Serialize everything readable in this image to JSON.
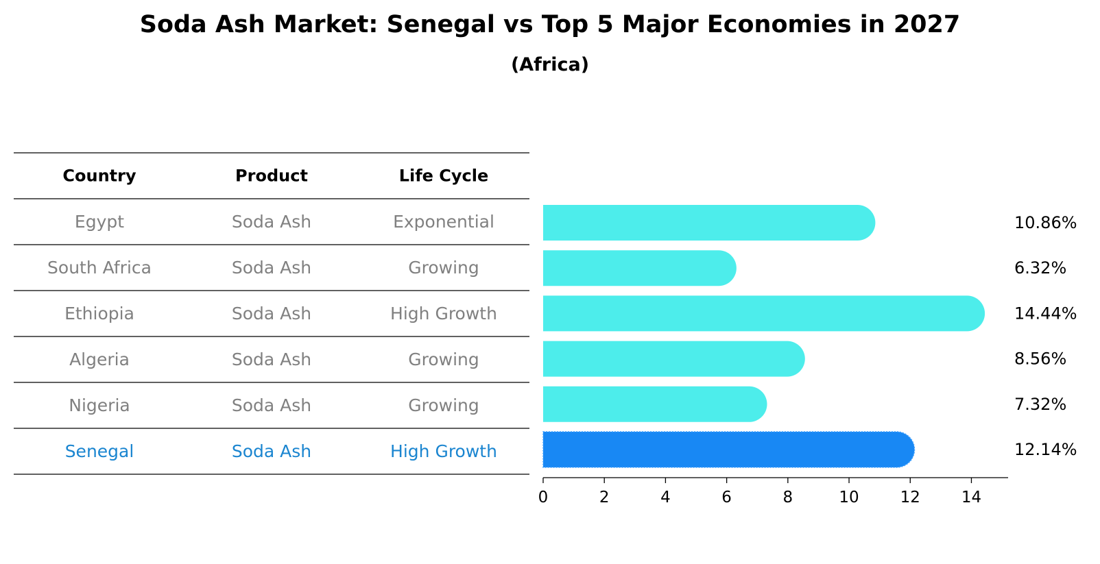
{
  "title": "Soda Ash Market: Senegal vs Top 5 Major Economies in 2027",
  "subtitle": "(Africa)",
  "table": {
    "headers": [
      "Country",
      "Product",
      "Life Cycle"
    ],
    "rows": [
      {
        "country": "Egypt",
        "product": "Soda Ash",
        "life_cycle": "Exponential",
        "highlight": false
      },
      {
        "country": "South Africa",
        "product": "Soda Ash",
        "life_cycle": "Growing",
        "highlight": false
      },
      {
        "country": "Ethiopia",
        "product": "Soda Ash",
        "life_cycle": "High Growth",
        "highlight": false
      },
      {
        "country": "Algeria",
        "product": "Soda Ash",
        "life_cycle": "Growing",
        "highlight": false
      },
      {
        "country": "Nigeria",
        "product": "Soda Ash",
        "life_cycle": "Growing",
        "highlight": false
      },
      {
        "country": "Senegal",
        "product": "Soda Ash",
        "life_cycle": "High Growth",
        "highlight": true
      }
    ]
  },
  "chart_data": {
    "type": "bar",
    "orientation": "horizontal",
    "title": "Soda Ash Market: Senegal vs Top 5 Major Economies in 2027",
    "subtitle": "(Africa)",
    "categories": [
      "Egypt",
      "South Africa",
      "Ethiopia",
      "Algeria",
      "Nigeria",
      "Senegal"
    ],
    "values": [
      10.86,
      6.32,
      14.44,
      8.56,
      7.32,
      12.14
    ],
    "value_labels": [
      "10.86%",
      "6.32%",
      "14.44%",
      "8.56%",
      "7.32%",
      "12.14%"
    ],
    "highlight_index": 5,
    "xlim": [
      0,
      15.2
    ],
    "xticks": [
      0,
      2,
      4,
      6,
      8,
      10,
      12,
      14
    ],
    "xlabel": "",
    "ylabel": "",
    "grid": false
  },
  "colors": {
    "bar": "#4DEDEB",
    "highlight_bar": "#1888F4",
    "muted_text": "#808080",
    "highlight_text": "#1A85D0",
    "rule": "#000000"
  }
}
